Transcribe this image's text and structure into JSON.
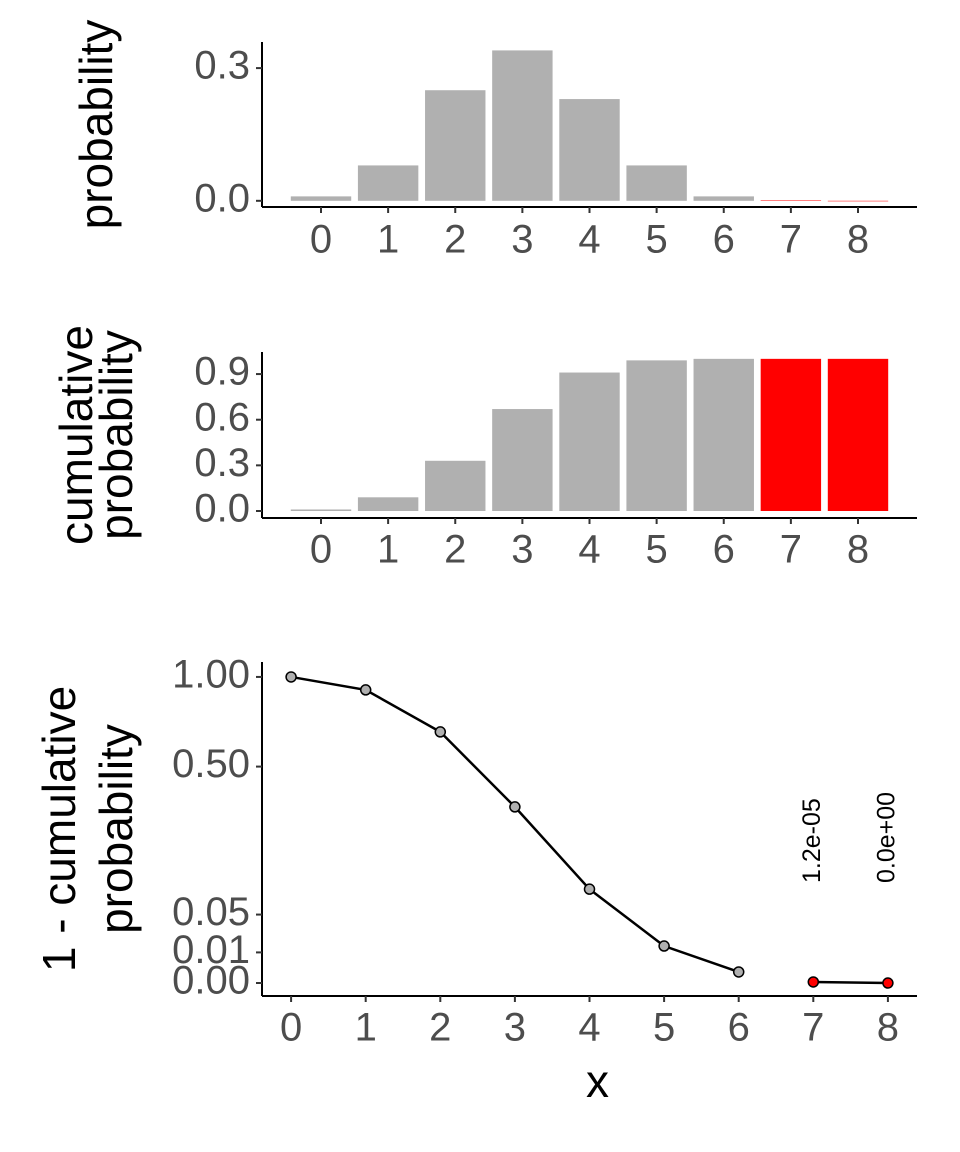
{
  "chart_data": [
    {
      "type": "bar",
      "ylabel": "probability",
      "categories": [
        "0",
        "1",
        "2",
        "3",
        "4",
        "5",
        "6",
        "7",
        "8"
      ],
      "values": [
        0.01,
        0.08,
        0.25,
        0.34,
        0.23,
        0.08,
        0.01,
        0.001,
        0
      ],
      "colors": [
        "#b0b0b0",
        "#b0b0b0",
        "#b0b0b0",
        "#b0b0b0",
        "#b0b0b0",
        "#b0b0b0",
        "#b0b0b0",
        "#ff0000",
        "#ff0000"
      ],
      "ylim": [
        -0.014,
        0.359
      ],
      "yticks": [
        {
          "value": 0,
          "label": "0.0"
        },
        0.3
      ]
    },
    {
      "type": "bar",
      "ylabel": [
        "cumulative",
        "probability"
      ],
      "categories": [
        "0",
        "1",
        "2",
        "3",
        "4",
        "5",
        "6",
        "7",
        "8"
      ],
      "values": [
        0.01,
        0.09,
        0.33,
        0.67,
        0.91,
        0.99,
        1.0,
        1.0,
        1.0
      ],
      "colors": [
        "#b0b0b0",
        "#b0b0b0",
        "#b0b0b0",
        "#b0b0b0",
        "#b0b0b0",
        "#b0b0b0",
        "#b0b0b0",
        "#ff0000",
        "#ff0000"
      ],
      "ylim": [
        -0.046,
        1.045
      ],
      "yticks": [
        {
          "value": 0,
          "label": "0.0"
        },
        0.3,
        0.6,
        0.9
      ]
    },
    {
      "type": "line",
      "xlabel": "x",
      "ylabel": [
        "1 - cumulative",
        "probability"
      ],
      "yscale": "sqrt",
      "line_color": "#000000",
      "x": [
        0,
        1,
        2,
        3,
        4,
        5,
        6,
        7,
        8
      ],
      "series": [
        {
          "color": "#b0b0b0",
          "values": [
            1.0,
            0.917,
            0.673,
            0.331,
            0.094,
            0.0146,
            0.0013,
            null,
            null
          ]
        },
        {
          "color": "#ff0000",
          "values": [
            null,
            null,
            null,
            null,
            null,
            null,
            null,
            1.2e-05,
            0
          ],
          "value_labels": [
            null,
            null,
            null,
            null,
            null,
            null,
            null,
            "1.2e-05",
            "0.0e+00"
          ]
        }
      ],
      "xlim": [
        -0.39,
        8.39
      ],
      "xticks": [
        0,
        1,
        2,
        3,
        4,
        5,
        6,
        7,
        8
      ],
      "ylim": [
        -0.0018,
        1.1
      ],
      "yticks": [
        {
          "value": 0,
          "label": "0.00"
        },
        0.01,
        0.05,
        {
          "value": 0.5,
          "label": "0.50"
        },
        {
          "value": 1,
          "label": "1.00"
        }
      ]
    }
  ]
}
